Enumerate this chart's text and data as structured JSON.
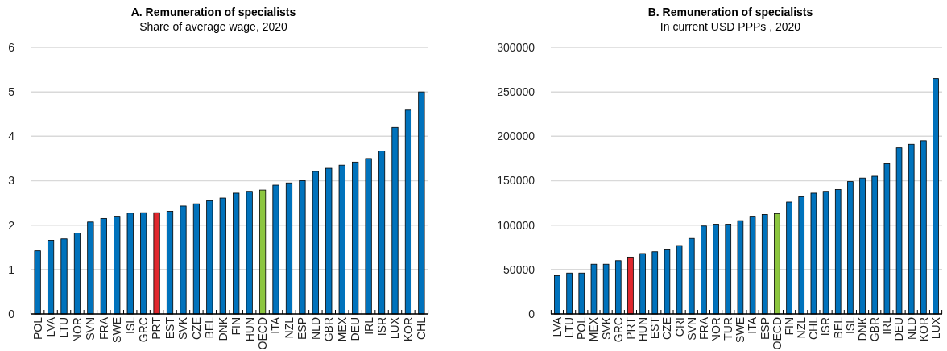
{
  "chart_data": [
    {
      "type": "bar",
      "title": "A. Remuneration of specialists",
      "subtitle": "Share of average wage, 2020",
      "categories": [
        "POL",
        "LVA",
        "LTU",
        "NOR",
        "SVN",
        "FRA",
        "SWE",
        "ISL",
        "GRC",
        "PRT",
        "EST",
        "SVK",
        "CZE",
        "BEL",
        "DNK",
        "FIN",
        "HUN",
        "OECD",
        "ITA",
        "NZL",
        "ESP",
        "NLD",
        "GBR",
        "MEX",
        "DEU",
        "IRL",
        "ISR",
        "LUX",
        "KOR",
        "CHL"
      ],
      "values": [
        1.42,
        1.66,
        1.69,
        1.82,
        2.07,
        2.15,
        2.2,
        2.27,
        2.28,
        2.28,
        2.31,
        2.43,
        2.48,
        2.55,
        2.61,
        2.72,
        2.76,
        2.79,
        2.9,
        2.95,
        3.0,
        3.21,
        3.28,
        3.35,
        3.42,
        3.5,
        3.67,
        4.2,
        4.59,
        5.0
      ],
      "colors": [
        "#0072bc",
        "#0072bc",
        "#0072bc",
        "#0072bc",
        "#0072bc",
        "#0072bc",
        "#0072bc",
        "#0072bc",
        "#0072bc",
        "#e0282e",
        "#0072bc",
        "#0072bc",
        "#0072bc",
        "#0072bc",
        "#0072bc",
        "#0072bc",
        "#0072bc",
        "#8cc63f",
        "#0072bc",
        "#0072bc",
        "#0072bc",
        "#0072bc",
        "#0072bc",
        "#0072bc",
        "#0072bc",
        "#0072bc",
        "#0072bc",
        "#0072bc",
        "#0072bc",
        "#0072bc"
      ],
      "ylim": [
        0,
        6
      ],
      "yticks": [
        0,
        1,
        2,
        3,
        4,
        5,
        6
      ],
      "grid": "y"
    },
    {
      "type": "bar",
      "title": "B. Remuneration of specialists",
      "subtitle": "In current USD PPPs , 2020",
      "categories": [
        "LVA",
        "LTU",
        "POL",
        "MEX",
        "SVK",
        "GRC",
        "PRT",
        "HUN",
        "EST",
        "CZE",
        "CRI",
        "SVN",
        "FRA",
        "NOR",
        "TUR",
        "SWE",
        "ITA",
        "ESP",
        "OECD",
        "FIN",
        "NZL",
        "CHL",
        "ISR",
        "BEL",
        "ISL",
        "DNK",
        "GBR",
        "IRL",
        "DEU",
        "NLD",
        "KOR",
        "LUX"
      ],
      "values": [
        43000,
        46000,
        46000,
        56000,
        56000,
        60000,
        64000,
        68000,
        70000,
        73000,
        77000,
        85000,
        99000,
        101000,
        101000,
        105000,
        110000,
        112000,
        113000,
        126000,
        132000,
        136000,
        138000,
        140000,
        149000,
        153000,
        155000,
        169000,
        187000,
        191000,
        195000,
        265000
      ],
      "colors": [
        "#0072bc",
        "#0072bc",
        "#0072bc",
        "#0072bc",
        "#0072bc",
        "#0072bc",
        "#e0282e",
        "#0072bc",
        "#0072bc",
        "#0072bc",
        "#0072bc",
        "#0072bc",
        "#0072bc",
        "#0072bc",
        "#0072bc",
        "#0072bc",
        "#0072bc",
        "#0072bc",
        "#8cc63f",
        "#0072bc",
        "#0072bc",
        "#0072bc",
        "#0072bc",
        "#0072bc",
        "#0072bc",
        "#0072bc",
        "#0072bc",
        "#0072bc",
        "#0072bc",
        "#0072bc",
        "#0072bc",
        "#0072bc"
      ],
      "ylim": [
        0,
        300000
      ],
      "yticks": [
        0,
        50000,
        100000,
        150000,
        200000,
        250000,
        300000
      ],
      "grid": "y"
    }
  ]
}
